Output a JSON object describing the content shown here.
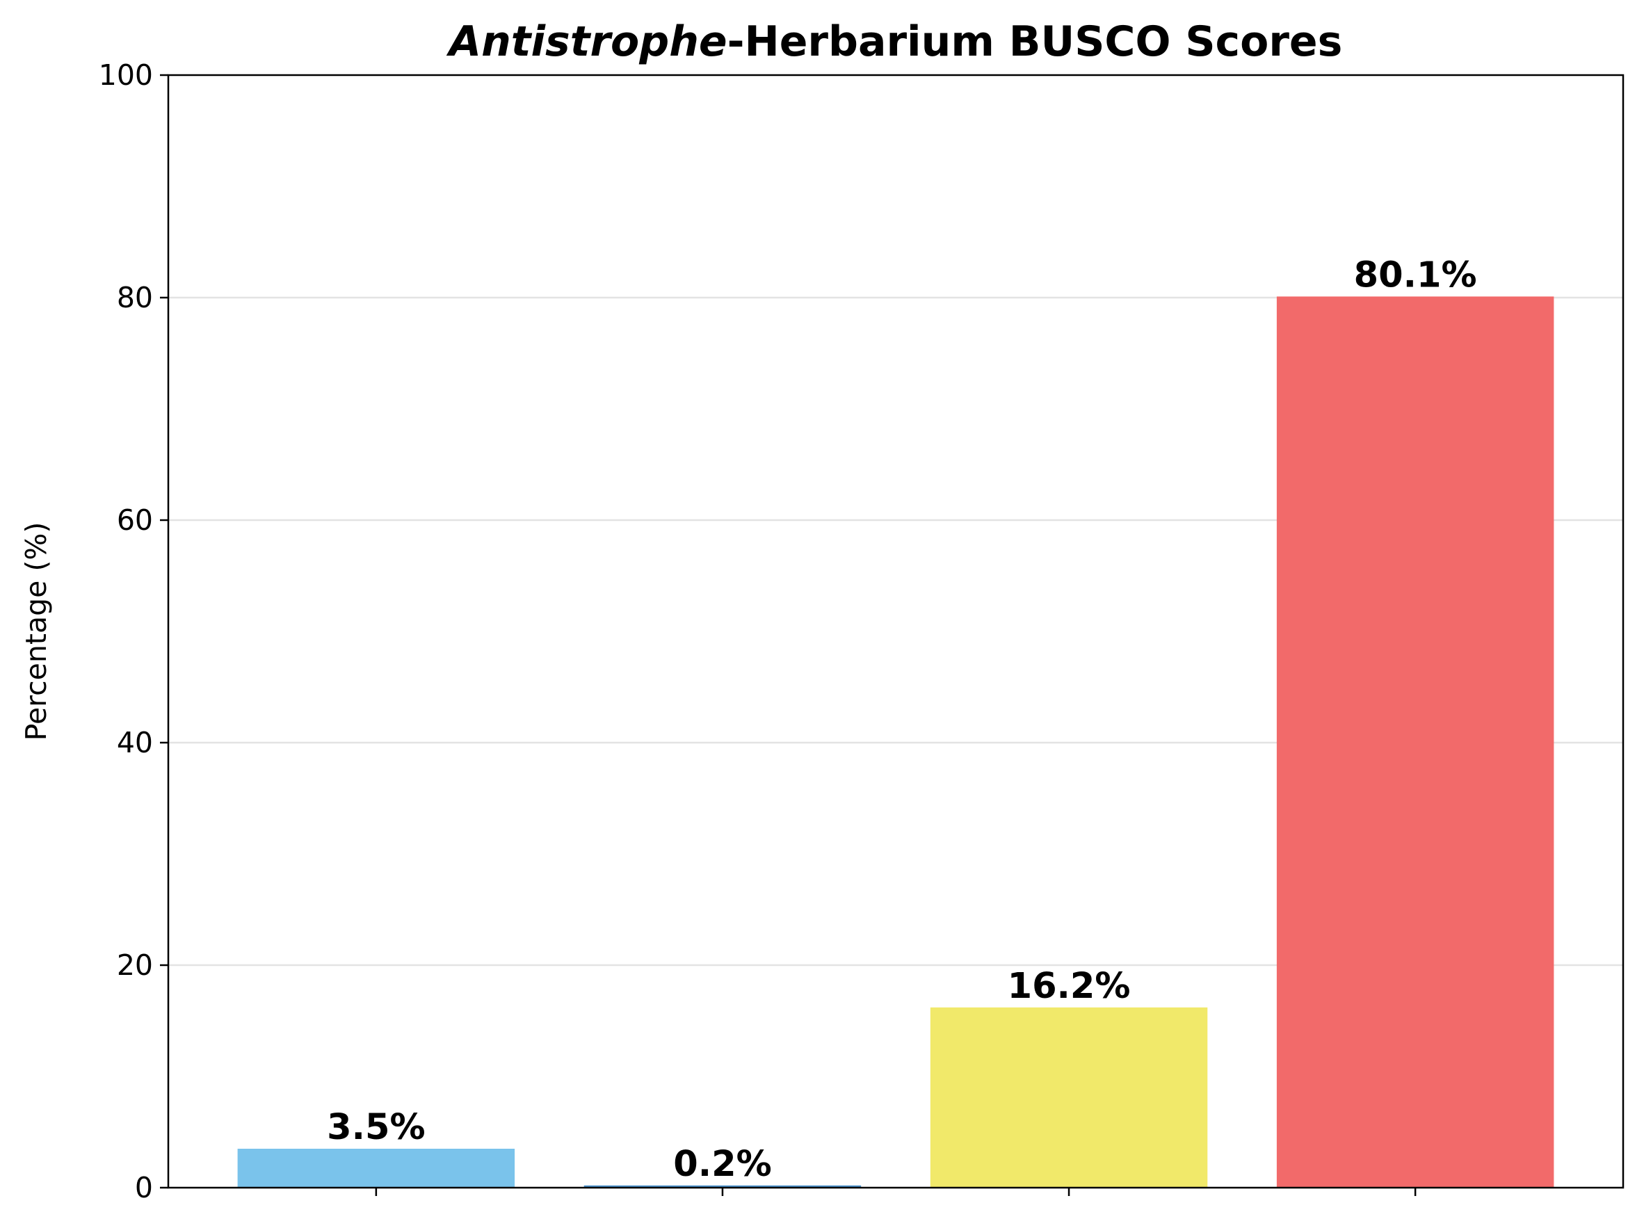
{
  "chart_data": {
    "type": "bar",
    "title": {
      "italic_part": "Antistrophe",
      "rest": "-Herbarium BUSCO Scores"
    },
    "xlabel": "",
    "ylabel": "Percentage (%)",
    "ylim": [
      0,
      100
    ],
    "yticks": [
      0,
      20,
      40,
      60,
      80,
      100
    ],
    "grid": "y-axis, light gray, behind bars",
    "legend": "none",
    "categories": [
      "",
      "",
      "",
      ""
    ],
    "values": [
      3.5,
      0.2,
      16.2,
      80.1
    ],
    "data_labels": [
      "3.5%",
      "0.2%",
      "16.2%",
      "80.1%"
    ],
    "colors": [
      "#7AC3EB",
      "#4A90C9",
      "#F1E96A",
      "#F26A6A"
    ]
  }
}
